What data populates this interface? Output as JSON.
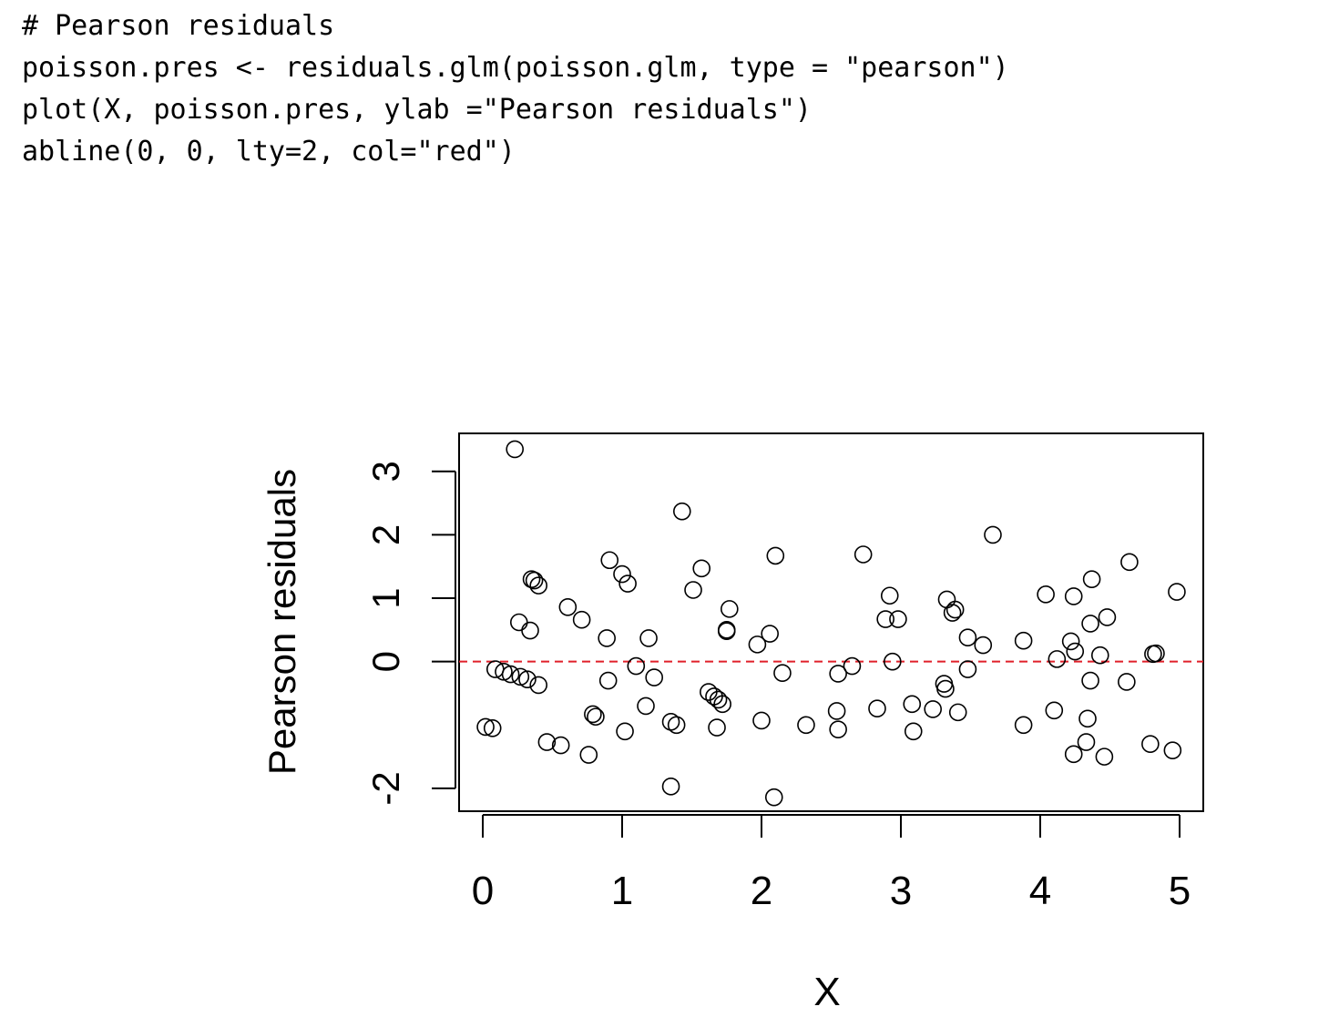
{
  "code": {
    "lines": [
      "# Pearson residuals",
      "poisson.pres <- residuals.glm(poisson.glm, type = \"pearson\")",
      "plot(X, poisson.pres, ylab =\"Pearson residuals\")",
      "abline(0, 0, lty=2, col=\"red\")"
    ]
  },
  "chart_data": {
    "type": "scatter",
    "title": "",
    "xlabel": "X",
    "ylabel": "Pearson residuals",
    "xlim": [
      -0.17,
      5.17
    ],
    "ylim": [
      -2.36,
      3.6
    ],
    "x_ticks": [
      "0",
      "1",
      "2",
      "3",
      "4",
      "5"
    ],
    "y_ticks": [
      "-2",
      "0",
      "1",
      "2",
      "3"
    ],
    "reference_line": {
      "y": 0,
      "style": "dashed",
      "color": "#e0202a"
    },
    "marker": "open-circle",
    "points": [
      {
        "x": 0.02,
        "y": -1.03
      },
      {
        "x": 0.07,
        "y": -1.05
      },
      {
        "x": 0.09,
        "y": -0.12
      },
      {
        "x": 0.15,
        "y": -0.16
      },
      {
        "x": 0.2,
        "y": -0.2
      },
      {
        "x": 0.23,
        "y": 3.35
      },
      {
        "x": 0.26,
        "y": 0.62
      },
      {
        "x": 0.27,
        "y": -0.24
      },
      {
        "x": 0.32,
        "y": -0.28
      },
      {
        "x": 0.34,
        "y": 0.49
      },
      {
        "x": 0.35,
        "y": 1.3
      },
      {
        "x": 0.37,
        "y": 1.28
      },
      {
        "x": 0.4,
        "y": 1.2
      },
      {
        "x": 0.4,
        "y": -0.37
      },
      {
        "x": 0.46,
        "y": -1.27
      },
      {
        "x": 0.56,
        "y": -1.32
      },
      {
        "x": 0.61,
        "y": 0.86
      },
      {
        "x": 0.71,
        "y": 0.66
      },
      {
        "x": 0.76,
        "y": -1.47
      },
      {
        "x": 0.79,
        "y": -0.83
      },
      {
        "x": 0.81,
        "y": -0.87
      },
      {
        "x": 0.89,
        "y": 0.37
      },
      {
        "x": 0.9,
        "y": -0.3
      },
      {
        "x": 0.91,
        "y": 1.6
      },
      {
        "x": 1.0,
        "y": 1.38
      },
      {
        "x": 1.02,
        "y": -1.1
      },
      {
        "x": 1.04,
        "y": 1.23
      },
      {
        "x": 1.1,
        "y": -0.07
      },
      {
        "x": 1.17,
        "y": -0.7
      },
      {
        "x": 1.19,
        "y": 0.37
      },
      {
        "x": 1.23,
        "y": -0.25
      },
      {
        "x": 1.35,
        "y": -0.95
      },
      {
        "x": 1.35,
        "y": -1.97
      },
      {
        "x": 1.39,
        "y": -1.0
      },
      {
        "x": 1.43,
        "y": 2.37
      },
      {
        "x": 1.51,
        "y": 1.13
      },
      {
        "x": 1.57,
        "y": 1.47
      },
      {
        "x": 1.62,
        "y": -0.48
      },
      {
        "x": 1.66,
        "y": -0.55
      },
      {
        "x": 1.68,
        "y": -1.04
      },
      {
        "x": 1.69,
        "y": -0.6
      },
      {
        "x": 1.72,
        "y": -0.67
      },
      {
        "x": 1.75,
        "y": 0.5
      },
      {
        "x": 1.75,
        "y": 0.48
      },
      {
        "x": 1.77,
        "y": 0.83
      },
      {
        "x": 1.97,
        "y": 0.27
      },
      {
        "x": 2.0,
        "y": -0.93
      },
      {
        "x": 2.06,
        "y": 0.44
      },
      {
        "x": 2.09,
        "y": -2.14
      },
      {
        "x": 2.1,
        "y": 1.67
      },
      {
        "x": 2.15,
        "y": -0.18
      },
      {
        "x": 2.32,
        "y": -1.0
      },
      {
        "x": 2.54,
        "y": -0.78
      },
      {
        "x": 2.55,
        "y": -1.07
      },
      {
        "x": 2.55,
        "y": -0.19
      },
      {
        "x": 2.65,
        "y": -0.07
      },
      {
        "x": 2.73,
        "y": 1.69
      },
      {
        "x": 2.83,
        "y": -0.74
      },
      {
        "x": 2.89,
        "y": 0.67
      },
      {
        "x": 2.92,
        "y": 1.04
      },
      {
        "x": 2.94,
        "y": 0.0
      },
      {
        "x": 2.98,
        "y": 0.67
      },
      {
        "x": 3.08,
        "y": -0.67
      },
      {
        "x": 3.09,
        "y": -1.1
      },
      {
        "x": 3.23,
        "y": -0.75
      },
      {
        "x": 3.31,
        "y": -0.35
      },
      {
        "x": 3.32,
        "y": -0.43
      },
      {
        "x": 3.33,
        "y": 0.98
      },
      {
        "x": 3.37,
        "y": 0.77
      },
      {
        "x": 3.39,
        "y": 0.82
      },
      {
        "x": 3.41,
        "y": -0.8
      },
      {
        "x": 3.48,
        "y": -0.12
      },
      {
        "x": 3.48,
        "y": 0.38
      },
      {
        "x": 3.59,
        "y": 0.26
      },
      {
        "x": 3.66,
        "y": 2.0
      },
      {
        "x": 3.88,
        "y": -1.0
      },
      {
        "x": 3.88,
        "y": 0.33
      },
      {
        "x": 4.04,
        "y": 1.06
      },
      {
        "x": 4.1,
        "y": -0.77
      },
      {
        "x": 4.12,
        "y": 0.04
      },
      {
        "x": 4.22,
        "y": 0.32
      },
      {
        "x": 4.24,
        "y": 1.03
      },
      {
        "x": 4.24,
        "y": -1.46
      },
      {
        "x": 4.25,
        "y": 0.16
      },
      {
        "x": 4.33,
        "y": -1.27
      },
      {
        "x": 4.34,
        "y": -0.9
      },
      {
        "x": 4.36,
        "y": -0.3
      },
      {
        "x": 4.36,
        "y": 0.6
      },
      {
        "x": 4.37,
        "y": 1.3
      },
      {
        "x": 4.43,
        "y": 0.1
      },
      {
        "x": 4.46,
        "y": -1.5
      },
      {
        "x": 4.48,
        "y": 0.7
      },
      {
        "x": 4.62,
        "y": -0.32
      },
      {
        "x": 4.64,
        "y": 1.57
      },
      {
        "x": 4.79,
        "y": -1.3
      },
      {
        "x": 4.81,
        "y": 0.12
      },
      {
        "x": 4.83,
        "y": 0.13
      },
      {
        "x": 4.95,
        "y": -1.4
      },
      {
        "x": 4.98,
        "y": 1.1
      }
    ]
  }
}
